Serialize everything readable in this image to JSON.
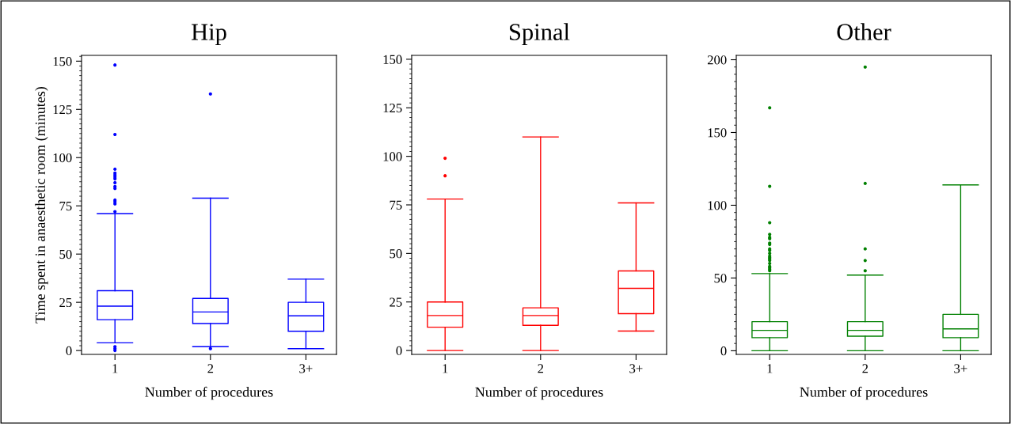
{
  "chart_data": [
    {
      "type": "box",
      "title": "Hip",
      "xlabel": "Number of procedures",
      "ylabel": "Time spent in anaesthetic room (minutes)",
      "categories": [
        "1",
        "2",
        "3+"
      ],
      "color": "#0000ff",
      "ylim": [
        -2,
        153
      ],
      "yticks": [
        0,
        25,
        50,
        75,
        100,
        125,
        150
      ],
      "boxes": [
        {
          "low": 4,
          "q1": 16,
          "median": 23,
          "q3": 31,
          "high": 71,
          "outliers": [
            148,
            112,
            94,
            92,
            91,
            90,
            89,
            87,
            85,
            84,
            78,
            77,
            76,
            72,
            2,
            1,
            0
          ]
        },
        {
          "low": 2,
          "q1": 14,
          "median": 20,
          "q3": 27,
          "high": 79,
          "outliers": [
            133,
            1
          ]
        },
        {
          "low": 1,
          "q1": 10,
          "median": 18,
          "q3": 25,
          "high": 37
        }
      ]
    },
    {
      "type": "box",
      "title": "Spinal",
      "xlabel": "Number of procedures",
      "categories": [
        "1",
        "2",
        "3+"
      ],
      "color": "#ff0000",
      "ylim": [
        -2,
        152
      ],
      "yticks": [
        0,
        25,
        50,
        75,
        100,
        125,
        150
      ],
      "boxes": [
        {
          "low": 0,
          "q1": 12,
          "median": 18,
          "q3": 25,
          "high": 78,
          "outliers": [
            99,
            90
          ]
        },
        {
          "low": 0,
          "q1": 13,
          "median": 18,
          "q3": 22,
          "high": 110
        },
        {
          "low": 10,
          "q1": 19,
          "median": 32,
          "q3": 41,
          "high": 76
        }
      ]
    },
    {
      "type": "box",
      "title": "Other",
      "xlabel": "Number of procedures",
      "categories": [
        "1",
        "2",
        "3+"
      ],
      "color": "#008000",
      "ylim": [
        -2.5,
        203
      ],
      "yticks": [
        0,
        50,
        100,
        150,
        200
      ],
      "boxes": [
        {
          "low": 0,
          "q1": 9,
          "median": 14,
          "q3": 20,
          "high": 53,
          "outliers": [
            167,
            113,
            88,
            80,
            78,
            77,
            74,
            73,
            70,
            69,
            67,
            65,
            64,
            63,
            62,
            60,
            58,
            57,
            56,
            55
          ]
        },
        {
          "low": 0,
          "q1": 10,
          "median": 14,
          "q3": 20,
          "high": 52,
          "outliers": [
            195,
            115,
            70,
            62,
            55
          ]
        },
        {
          "low": 0,
          "q1": 9,
          "median": 15,
          "q3": 25,
          "high": 114
        }
      ]
    }
  ]
}
